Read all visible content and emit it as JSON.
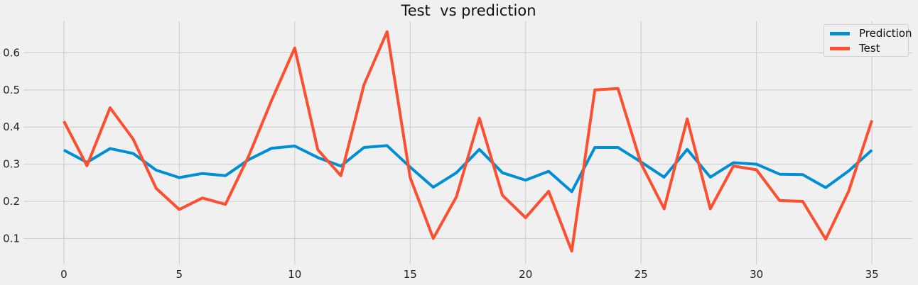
{
  "chart_data": {
    "type": "line",
    "title": "Test  vs prediction",
    "xlabel": "",
    "ylabel": "",
    "x": [
      0,
      1,
      2,
      3,
      4,
      5,
      6,
      7,
      8,
      9,
      10,
      11,
      12,
      13,
      14,
      15,
      16,
      17,
      18,
      19,
      20,
      21,
      22,
      23,
      24,
      25,
      26,
      27,
      28,
      29,
      30,
      31,
      32,
      33,
      34,
      35
    ],
    "xlim": [
      -1.75,
      36.75
    ],
    "ylim": [
      0.03,
      0.685
    ],
    "xticks": [
      0,
      5,
      10,
      15,
      20,
      25,
      30,
      35
    ],
    "xtick_labels": [
      "0",
      "5",
      "10",
      "15",
      "20",
      "25",
      "30",
      "35"
    ],
    "yticks": [
      0.1,
      0.2,
      0.3,
      0.4,
      0.5,
      0.6
    ],
    "ytick_labels": [
      "0.1",
      "0.2",
      "0.3",
      "0.4",
      "0.5",
      "0.6"
    ],
    "grid": true,
    "legend_position": "top-right",
    "series": [
      {
        "name": "Prediction",
        "color": "#008fd5",
        "values": [
          0.338,
          0.305,
          0.342,
          0.329,
          0.284,
          0.264,
          0.275,
          0.269,
          0.312,
          0.343,
          0.349,
          0.318,
          0.295,
          0.345,
          0.35,
          0.292,
          0.238,
          0.277,
          0.34,
          0.277,
          0.257,
          0.281,
          0.226,
          0.345,
          0.345,
          0.306,
          0.265,
          0.34,
          0.265,
          0.304,
          0.3,
          0.273,
          0.272,
          0.237,
          0.282,
          0.338
        ]
      },
      {
        "name": "Test",
        "color": "#fc4f30",
        "values": [
          0.416,
          0.296,
          0.452,
          0.368,
          0.235,
          0.178,
          0.209,
          0.192,
          0.321,
          0.472,
          0.613,
          0.339,
          0.269,
          0.514,
          0.657,
          0.264,
          0.1,
          0.212,
          0.424,
          0.216,
          0.156,
          0.227,
          0.066,
          0.5,
          0.504,
          0.302,
          0.18,
          0.422,
          0.18,
          0.295,
          0.285,
          0.202,
          0.2,
          0.098,
          0.228,
          0.418
        ]
      }
    ]
  }
}
